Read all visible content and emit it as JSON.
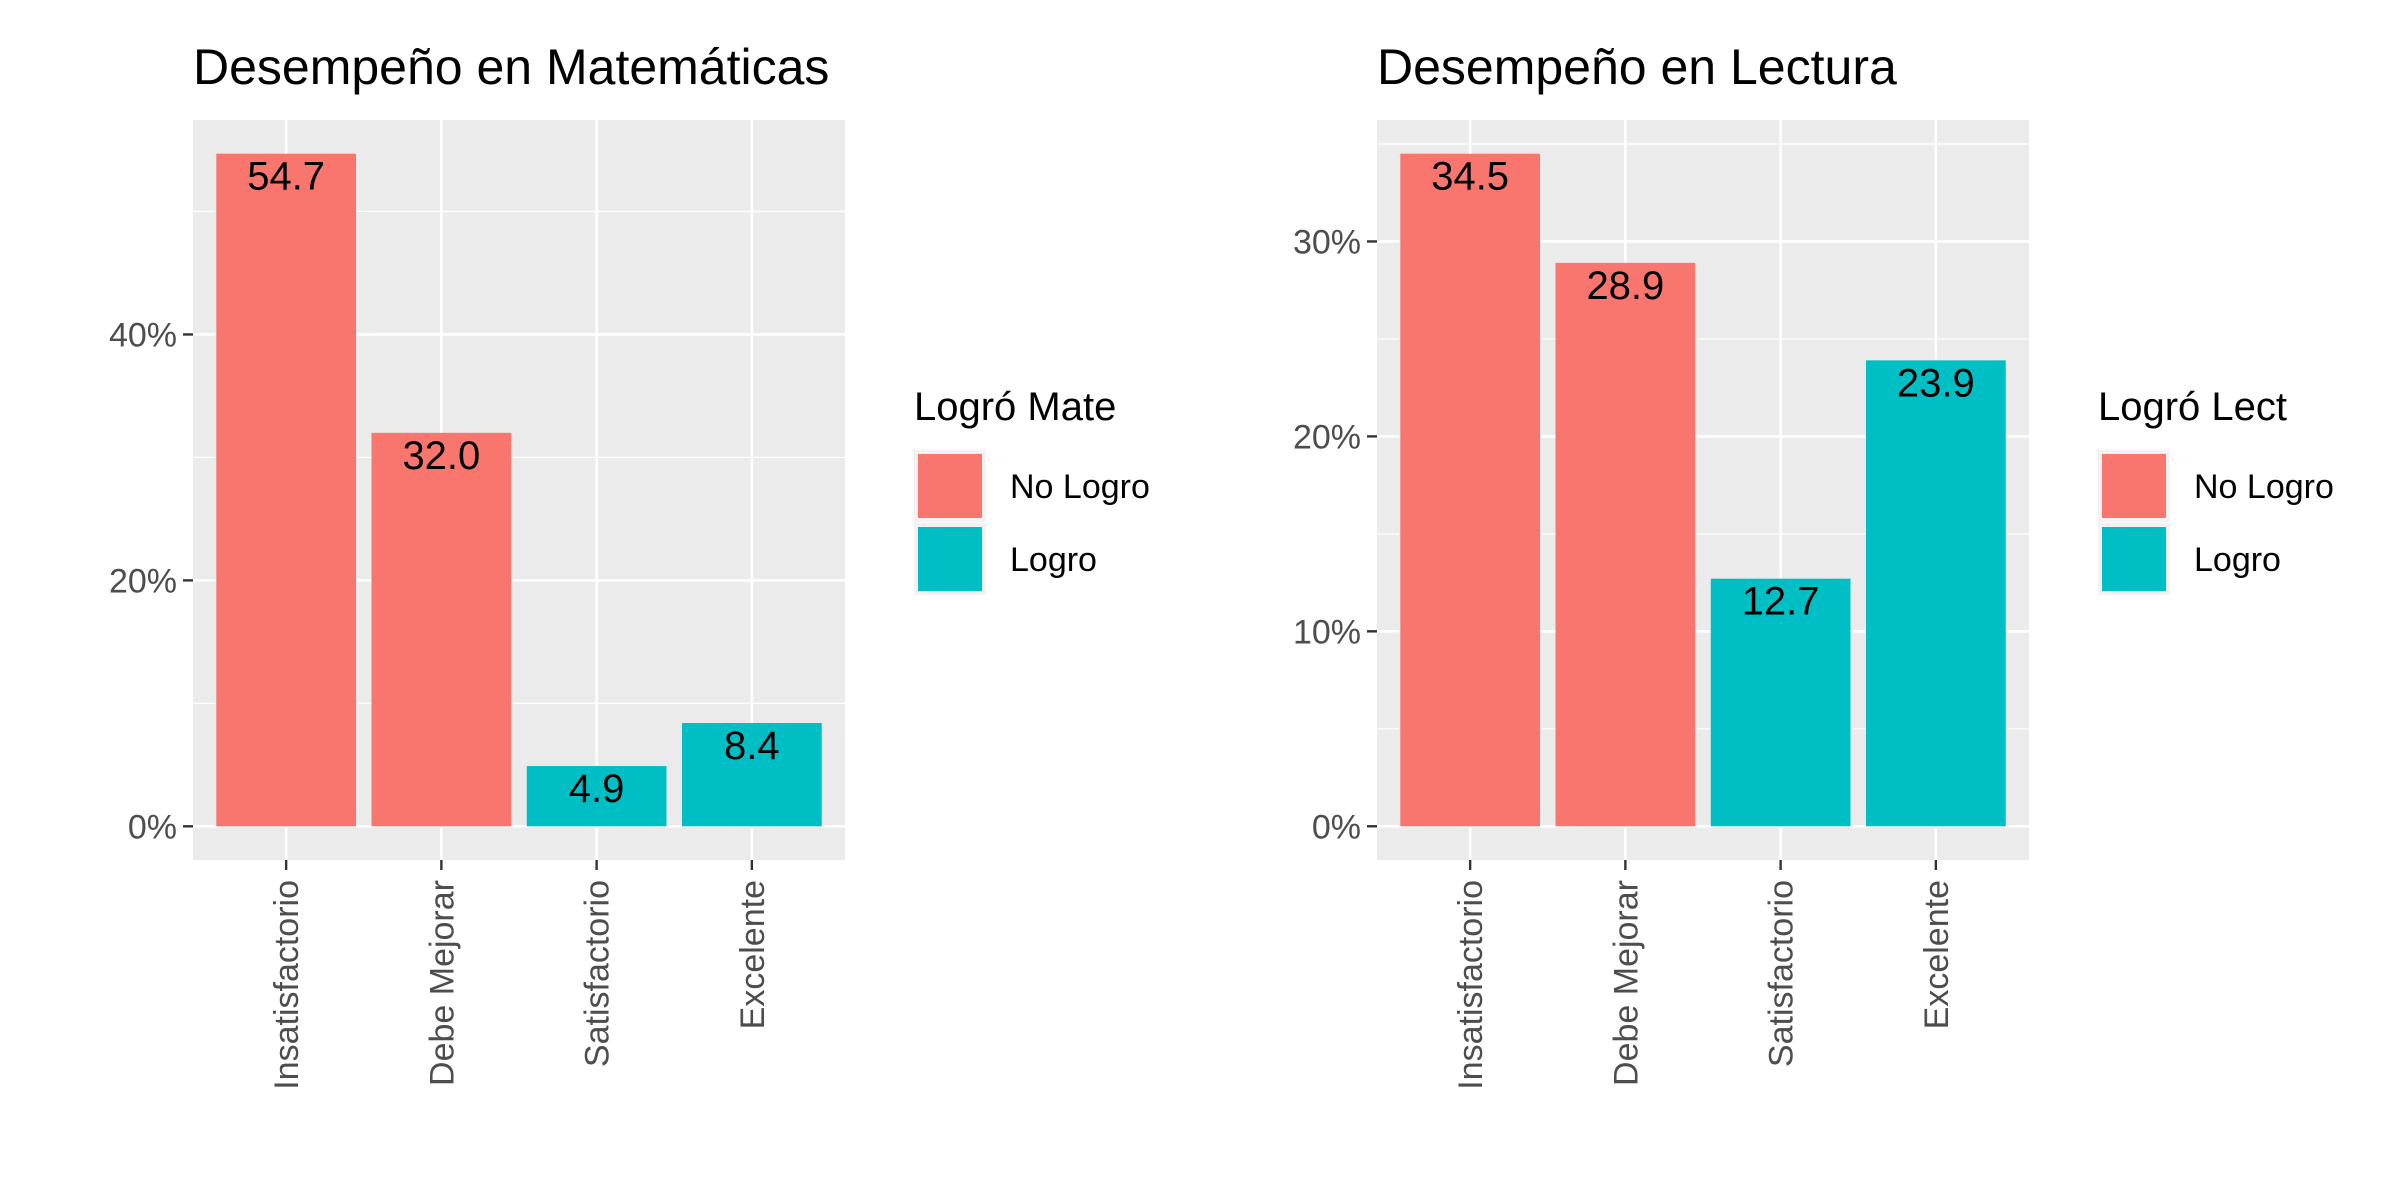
{
  "chart_data": [
    {
      "type": "bar",
      "title": "Desempeño en Matemáticas",
      "xlabel": "",
      "ylabel": "",
      "categories": [
        "Insatisfactorio",
        "Debe Mejorar",
        "Satisfactorio",
        "Excelente"
      ],
      "values": [
        54.7,
        32.0,
        4.9,
        8.4
      ],
      "data_labels": [
        "54.7",
        "32.0",
        "4.9",
        "8.4"
      ],
      "bar_groups": [
        "No Logro",
        "No Logro",
        "Logro",
        "Logro"
      ],
      "yticks": [
        0,
        20,
        40
      ],
      "ytick_labels": [
        "0%",
        "20%",
        "40%"
      ],
      "ylim": [
        -2.74,
        57.44
      ],
      "grid": true,
      "legend": {
        "title": "Logró Mate",
        "position": "right",
        "entries": [
          {
            "label": "No Logro",
            "color": "#F8766D"
          },
          {
            "label": "Logro",
            "color": "#00BFC4"
          }
        ]
      }
    },
    {
      "type": "bar",
      "title": "Desempeño en Lectura",
      "xlabel": "",
      "ylabel": "",
      "categories": [
        "Insatisfactorio",
        "Debe Mejorar",
        "Satisfactorio",
        "Excelente"
      ],
      "values": [
        34.5,
        28.9,
        12.7,
        23.9
      ],
      "data_labels": [
        "34.5",
        "28.9",
        "12.7",
        "23.9"
      ],
      "bar_groups": [
        "No Logro",
        "No Logro",
        "Logro",
        "Logro"
      ],
      "yticks": [
        0,
        10,
        20,
        30
      ],
      "ytick_labels": [
        "0%",
        "10%",
        "20%",
        "30%"
      ],
      "ylim": [
        -1.73,
        36.23
      ],
      "grid": true,
      "legend": {
        "title": "Logró Lect",
        "position": "right",
        "entries": [
          {
            "label": "No Logro",
            "color": "#F8766D"
          },
          {
            "label": "Logro",
            "color": "#00BFC4"
          }
        ]
      }
    }
  ],
  "colors": {
    "panel_background": "#EBEBEB",
    "grid": "#FFFFFF",
    "tick_text": "#4D4D4D",
    "tick_mark": "#333333"
  }
}
